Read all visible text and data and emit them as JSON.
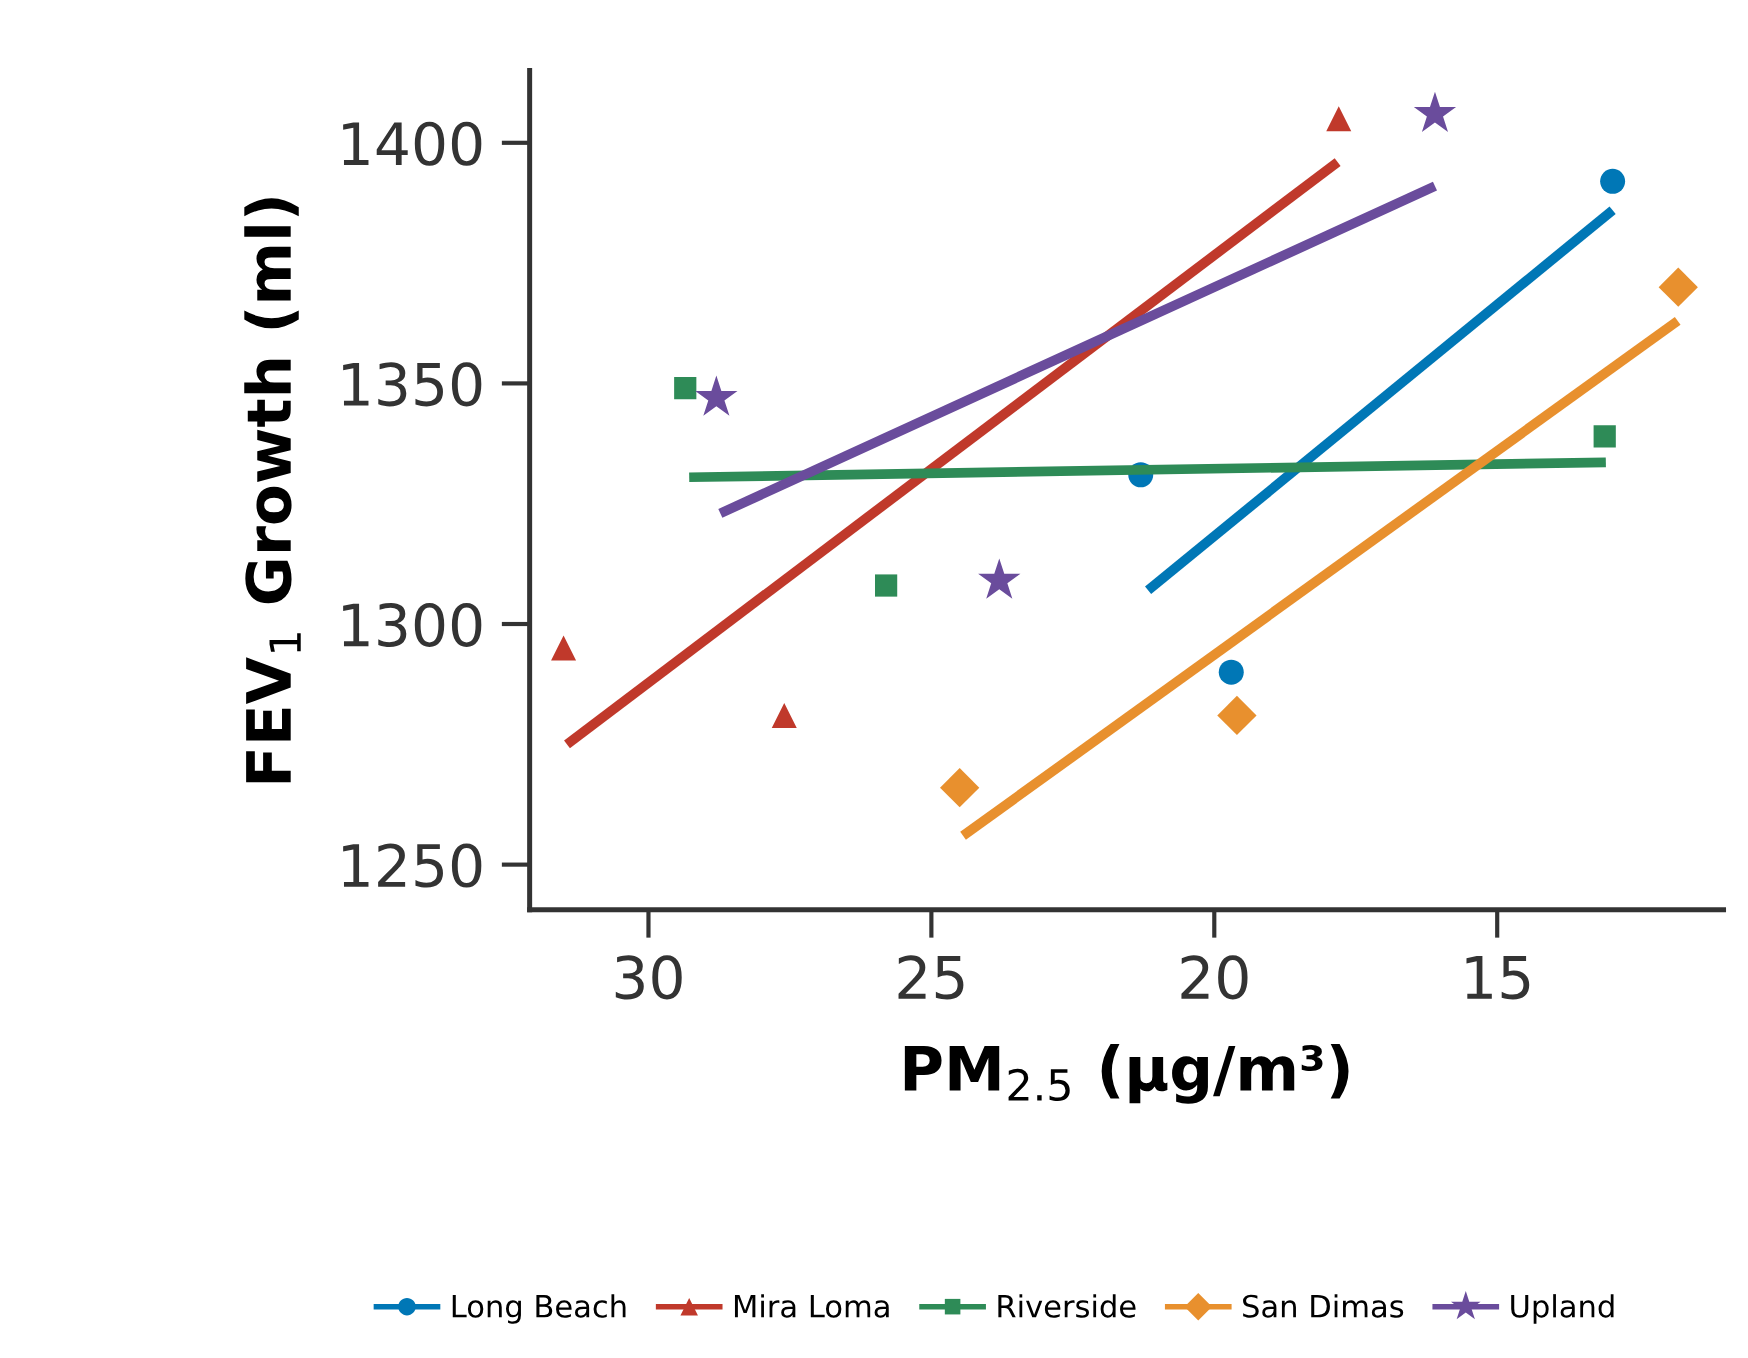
{
  "chart_data": {
    "type": "scatter",
    "xlabel": "PM$_{2.5}$ (μg/m³)",
    "ylabel": "FEV$_{1}$ Growth (ml)",
    "xlim": [
      32.1,
      11.0
    ],
    "xticks": [
      30,
      25,
      20,
      15
    ],
    "ylim": [
      1240.6,
      1415
    ],
    "yticks": [
      1250,
      1300,
      1350,
      1400
    ],
    "grid": false,
    "legend": "bottom",
    "series": [
      {
        "name": "Long Beach",
        "color": "#0077b6",
        "marker": "circle",
        "x": [
          12.96,
          21.3,
          19.7
        ],
        "values": [
          1392,
          1331,
          1290
        ]
      },
      {
        "name": "Mira Loma",
        "color": "#c0392b",
        "marker": "triangle",
        "x": [
          17.8,
          31.5,
          27.6
        ],
        "values": [
          1405,
          1295,
          1281
        ]
      },
      {
        "name": "Riverside",
        "color": "#2e8b57",
        "marker": "square",
        "x": [
          29.35,
          25.8,
          13.1
        ],
        "values": [
          1349,
          1308,
          1339
        ]
      },
      {
        "name": "San Dimas",
        "color": "#e8902e",
        "marker": "diamond",
        "x": [
          24.5,
          19.6,
          11.8
        ],
        "values": [
          1266,
          1281,
          1370
        ]
      },
      {
        "name": "Upland",
        "color": "#6a4c9c",
        "marker": "star",
        "x": [
          28.8,
          23.8,
          16.1
        ],
        "values": [
          1347,
          1309,
          1406
        ]
      },
      {
        "type": "line",
        "color": "#0077b6",
        "x": [
          21.17,
          12.96
        ],
        "values": [
          1307,
          1386
        ]
      },
      {
        "type": "line",
        "color": "#c0392b",
        "x": [
          31.44,
          17.82
        ],
        "values": [
          1275,
          1396
        ]
      },
      {
        "type": "line",
        "color": "#2e8b57",
        "x": [
          29.28,
          13.08
        ],
        "values": [
          1330.5,
          1333.6
        ]
      },
      {
        "type": "line",
        "color": "#e8902e",
        "x": [
          24.44,
          11.81
        ],
        "values": [
          1256,
          1363
        ]
      },
      {
        "type": "line",
        "color": "#6a4c9c",
        "x": [
          28.73,
          16.1
        ],
        "values": [
          1323,
          1391
        ]
      }
    ]
  }
}
